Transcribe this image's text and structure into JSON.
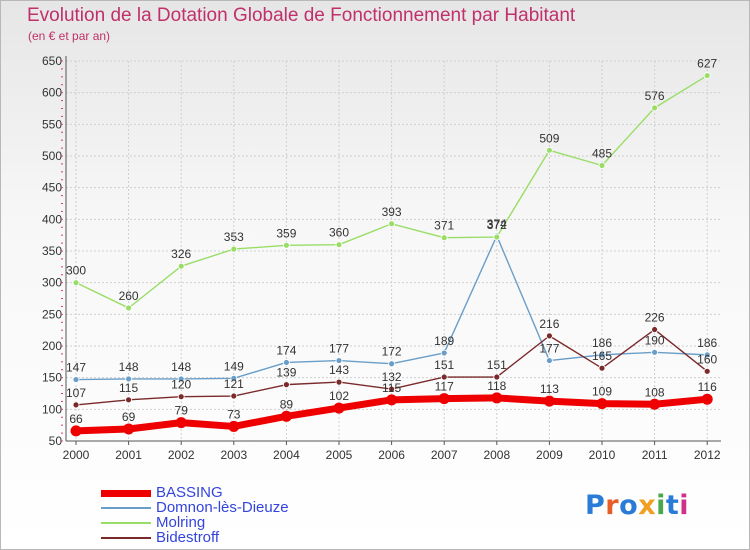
{
  "title": "Evolution de la Dotation Globale de Fonctionnement par Habitant",
  "subtitle": "(en € et par an)",
  "logo": {
    "text": "Proxiti",
    "colors": [
      "#2a7bd8",
      "#e65e2a",
      "#2a7bd8",
      "#f0a020",
      "#4aa84a",
      "#2a7bd8",
      "#d0308a"
    ]
  },
  "chart_data": {
    "type": "line",
    "title": "Evolution de la Dotation Globale de Fonctionnement par Habitant",
    "subtitle": "(en € et par an)",
    "xlabel": "",
    "ylabel": "",
    "x": [
      "2000",
      "2001",
      "2002",
      "2003",
      "2004",
      "2005",
      "2006",
      "2007",
      "2008",
      "2009",
      "2010",
      "2011",
      "2012"
    ],
    "ylim": [
      50,
      650
    ],
    "yticks": [
      "50",
      "100",
      "150",
      "200",
      "250",
      "300",
      "350",
      "400",
      "450",
      "500",
      "550",
      "600",
      "650"
    ],
    "grid": true,
    "legend_position": "bottom-left",
    "series": [
      {
        "name": "BASSING",
        "color": "#ee0000",
        "values": [
          66,
          69,
          79,
          73,
          89,
          102,
          115,
          117,
          118,
          113,
          109,
          108,
          116
        ],
        "labels": [
          "66",
          "69",
          "79",
          "73",
          "89",
          "102",
          "115",
          "117",
          "118",
          "113",
          "109",
          "108",
          "116"
        ]
      },
      {
        "name": "Domnon-lès-Dieuze",
        "color": "#6a9ec8",
        "values": [
          147,
          148,
          148,
          149,
          174,
          177,
          172,
          189,
          374,
          177,
          186,
          190,
          186
        ],
        "labels": [
          "147",
          "148",
          "148",
          "149",
          "174",
          "177",
          "172",
          "189",
          "374",
          "177",
          "186",
          "190",
          "186"
        ]
      },
      {
        "name": "Molring",
        "color": "#99dd66",
        "values": [
          300,
          260,
          326,
          353,
          359,
          360,
          393,
          371,
          372,
          509,
          485,
          576,
          627
        ],
        "labels": [
          "300",
          "260",
          "326",
          "353",
          "359",
          "360",
          "393",
          "371",
          "372",
          "509",
          "485",
          "576",
          "627"
        ]
      },
      {
        "name": "Bidestroff",
        "color": "#7a2a2a",
        "values": [
          107,
          115,
          120,
          121,
          139,
          143,
          132,
          151,
          151,
          216,
          165,
          226,
          160
        ],
        "labels": [
          "107",
          "115",
          "120",
          "121",
          "139",
          "143",
          "132",
          "151",
          "151",
          "216",
          "165",
          "226",
          "160"
        ]
      }
    ]
  }
}
